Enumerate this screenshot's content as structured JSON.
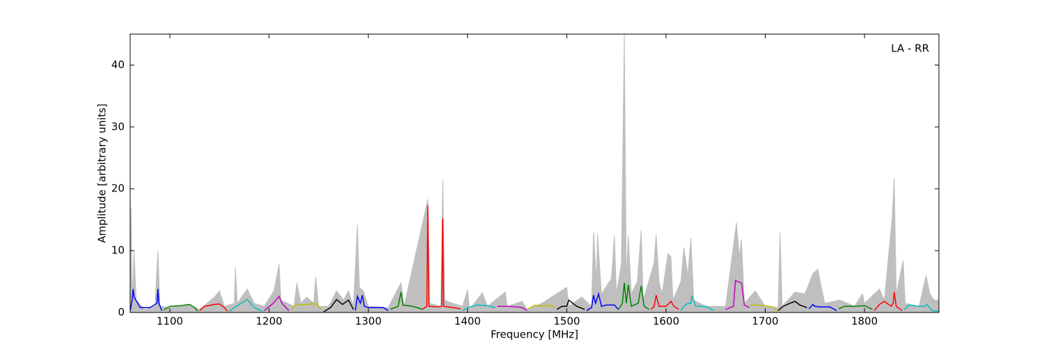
{
  "chart_data": {
    "type": "line",
    "annotation": "LA - RR",
    "xlabel": "Frequency [MHz]",
    "ylabel": "Amplitude [arbitrary units]",
    "xlim": [
      1060,
      1875
    ],
    "ylim": [
      0,
      45
    ],
    "xticks": [
      1100,
      1200,
      1300,
      1400,
      1500,
      1600,
      1700,
      1800
    ],
    "yticks": [
      0,
      10,
      20,
      30,
      40
    ],
    "grid": false,
    "series": [
      {
        "color": "#bfbfbf",
        "area": true,
        "x": [
          1060,
          1061,
          1062,
          1064,
          1066,
          1075,
          1085,
          1088,
          1090,
          1100,
          1120,
          1130,
          1145,
          1150,
          1155,
          1165,
          1166,
          1168,
          1178,
          1185,
          1195,
          1205,
          1210,
          1212,
          1225,
          1228,
          1232,
          1238,
          1245,
          1247,
          1250,
          1260,
          1268,
          1275,
          1280,
          1285,
          1289,
          1291,
          1295,
          1300,
          1320,
          1333,
          1336,
          1360,
          1362,
          1373,
          1375,
          1377,
          1385,
          1395,
          1400,
          1402,
          1415,
          1420,
          1438,
          1440,
          1455,
          1460,
          1475,
          1500,
          1502,
          1515,
          1525,
          1527,
          1530,
          1531,
          1535,
          1545,
          1548,
          1550,
          1555,
          1558,
          1560,
          1562,
          1565,
          1571,
          1575,
          1577,
          1588,
          1590,
          1593,
          1596,
          1602,
          1605,
          1607,
          1615,
          1618,
          1622,
          1625,
          1628,
          1640,
          1660,
          1671,
          1674,
          1676,
          1679,
          1690,
          1700,
          1713,
          1715,
          1717,
          1730,
          1740,
          1748,
          1753,
          1756,
          1760,
          1775,
          1790,
          1798,
          1800,
          1815,
          1820,
          1828,
          1830,
          1832,
          1839,
          1841,
          1855,
          1862,
          1866,
          1870,
          1875
        ],
        "values": [
          0,
          17,
          2,
          10,
          2,
          0.5,
          1,
          10,
          1,
          0.8,
          1.3,
          0.5,
          2.5,
          3.5,
          1,
          1.5,
          7.3,
          1.5,
          3.8,
          1.5,
          1,
          3.5,
          7.8,
          2,
          1,
          4.8,
          1.5,
          2.5,
          1.5,
          5.8,
          1,
          1,
          3.5,
          2,
          3.5,
          1,
          14.2,
          4,
          3.5,
          1,
          0.8,
          4.8,
          1,
          18.3,
          1.5,
          1,
          21.5,
          2,
          1.5,
          1,
          3.7,
          0.5,
          3.2,
          1,
          3.3,
          1,
          1.8,
          0.5,
          1.5,
          4.1,
          1,
          2.5,
          1,
          13,
          5,
          12.7,
          3,
          5.5,
          12.5,
          3,
          8,
          45,
          5,
          12.5,
          3,
          5,
          13.3,
          2,
          8,
          12.7,
          5,
          3,
          9.5,
          9,
          2,
          5,
          10.5,
          6,
          12,
          2,
          1,
          1,
          14.5,
          9,
          11.8,
          1.5,
          3.5,
          1,
          0.8,
          12.9,
          1,
          3.3,
          3,
          6.3,
          7,
          4.5,
          1.5,
          2,
          1,
          3,
          1.5,
          3.8,
          2,
          15.5,
          21.7,
          3,
          8.4,
          1.5,
          1,
          6,
          3,
          2,
          2
        ]
      },
      {
        "color": "#0000ff",
        "x": [
          1060,
          1062,
          1063,
          1064,
          1070,
          1080,
          1087,
          1088,
          1089,
          1092
        ],
        "values": [
          0.3,
          2,
          3.8,
          2.5,
          0.8,
          0.8,
          1.5,
          3.8,
          1.5,
          0.3
        ]
      },
      {
        "color": "#008000",
        "x": [
          1094,
          1100,
          1110,
          1120,
          1125,
          1128
        ],
        "values": [
          0.4,
          1,
          1.1,
          1.3,
          0.8,
          0.2
        ]
      },
      {
        "color": "#ff0000",
        "x": [
          1130,
          1135,
          1145,
          1150,
          1155,
          1158
        ],
        "values": [
          0.3,
          1,
          1.3,
          1.4,
          0.8,
          0.2
        ]
      },
      {
        "color": "#00bfbf",
        "x": [
          1160,
          1165,
          1170,
          1178,
          1185,
          1193
        ],
        "values": [
          0.2,
          0.8,
          1.3,
          2.1,
          0.8,
          0.2
        ]
      },
      {
        "color": "#bf00bf",
        "x": [
          1195,
          1203,
          1208,
          1210,
          1213,
          1220
        ],
        "values": [
          0.3,
          1.3,
          2.2,
          2.6,
          1.5,
          0.3
        ]
      },
      {
        "color": "#bfbf00",
        "x": [
          1222,
          1228,
          1235,
          1242,
          1248,
          1252
        ],
        "values": [
          0.5,
          1.3,
          1.2,
          1.4,
          1.4,
          0.5
        ]
      },
      {
        "color": "#000000",
        "x": [
          1255,
          1262,
          1268,
          1274,
          1280,
          1285
        ],
        "values": [
          0.1,
          0.8,
          2.1,
          1.3,
          2,
          0.5
        ]
      },
      {
        "color": "#0000ff",
        "x": [
          1287,
          1289,
          1292,
          1294,
          1296,
          1300,
          1315,
          1320
        ],
        "values": [
          0.3,
          2.6,
          1.5,
          2.8,
          1,
          0.8,
          0.8,
          0.3
        ]
      },
      {
        "color": "#008000",
        "x": [
          1322,
          1330,
          1333,
          1335,
          1345,
          1355
        ],
        "values": [
          0.5,
          1,
          3.3,
          1.2,
          1,
          0.5
        ]
      },
      {
        "color": "#ff0000",
        "x": [
          1355,
          1359,
          1360,
          1361,
          1370,
          1374,
          1375,
          1376,
          1385,
          1393
        ],
        "values": [
          0.6,
          1,
          17.3,
          1,
          0.9,
          1,
          15.2,
          1,
          0.8,
          0.6
        ]
      },
      {
        "color": "#00bfbf",
        "x": [
          1395,
          1400,
          1410,
          1420,
          1428
        ],
        "values": [
          0.3,
          0.8,
          1.2,
          1.1,
          0.8
        ]
      },
      {
        "color": "#bf00bf",
        "x": [
          1430,
          1440,
          1450,
          1455,
          1460
        ],
        "values": [
          1,
          1,
          0.9,
          0.8,
          0.3
        ]
      },
      {
        "color": "#bfbf00",
        "x": [
          1460,
          1468,
          1475,
          1482,
          1488
        ],
        "values": [
          0.5,
          1.2,
          1,
          1.2,
          0.8
        ]
      },
      {
        "color": "#000000",
        "x": [
          1490,
          1495,
          1500,
          1502,
          1510,
          1518
        ],
        "values": [
          0.5,
          1,
          1,
          2,
          1,
          0.5
        ]
      },
      {
        "color": "#0000ff",
        "x": [
          1520,
          1525,
          1527,
          1529,
          1532,
          1535,
          1540,
          1548,
          1552
        ],
        "values": [
          0.3,
          0.8,
          2.8,
          1.5,
          3,
          1,
          1.2,
          1.2,
          0.5
        ]
      },
      {
        "color": "#008000",
        "x": [
          1552,
          1556,
          1558,
          1560,
          1562,
          1565,
          1572,
          1575,
          1578,
          1583
        ],
        "values": [
          0.5,
          1.5,
          4.8,
          1.5,
          4.5,
          1,
          1.5,
          4.3,
          1,
          0.5
        ]
      },
      {
        "color": "#ff0000",
        "x": [
          1585,
          1588,
          1590,
          1593,
          1600,
          1605,
          1608,
          1613
        ],
        "values": [
          0.5,
          1,
          2.8,
          1,
          1,
          1.8,
          1,
          0.5
        ]
      },
      {
        "color": "#00bfbf",
        "x": [
          1615,
          1618,
          1622,
          1625,
          1626,
          1630,
          1640,
          1648
        ],
        "values": [
          0.3,
          1,
          1.5,
          1.5,
          2.7,
          1,
          1,
          0.3
        ]
      },
      {
        "color": "#bf00bf",
        "x": [
          1660,
          1668,
          1670,
          1672,
          1676,
          1679,
          1684
        ],
        "values": [
          0.5,
          1,
          5.2,
          5,
          4.8,
          1.2,
          0.8
        ]
      },
      {
        "color": "#bfbf00",
        "x": [
          1685,
          1690,
          1700,
          1708,
          1712
        ],
        "values": [
          1.2,
          1.2,
          1.1,
          0.9,
          0.2
        ]
      },
      {
        "color": "#000000",
        "x": [
          1713,
          1718,
          1725,
          1730,
          1735,
          1742
        ],
        "values": [
          0.3,
          1,
          1.5,
          1.8,
          1.2,
          0.8
        ]
      },
      {
        "color": "#0000ff",
        "x": [
          1744,
          1748,
          1750,
          1755,
          1765,
          1772
        ],
        "values": [
          0.6,
          1.3,
          1,
          0.9,
          0.9,
          0.3
        ]
      },
      {
        "color": "#008000",
        "x": [
          1774,
          1780,
          1790,
          1800,
          1808
        ],
        "values": [
          0.6,
          1,
          1,
          1.1,
          0.5
        ]
      },
      {
        "color": "#ff0000",
        "x": [
          1810,
          1815,
          1820,
          1827,
          1829,
          1830,
          1832,
          1838
        ],
        "values": [
          0.3,
          1.3,
          1.8,
          1,
          1.5,
          3.3,
          1,
          0.3
        ]
      },
      {
        "color": "#00bfbf",
        "x": [
          1840,
          1845,
          1855,
          1860,
          1863,
          1868,
          1875
        ],
        "values": [
          0.5,
          1.2,
          1,
          1,
          1.3,
          0.3,
          0.2
        ]
      }
    ]
  }
}
